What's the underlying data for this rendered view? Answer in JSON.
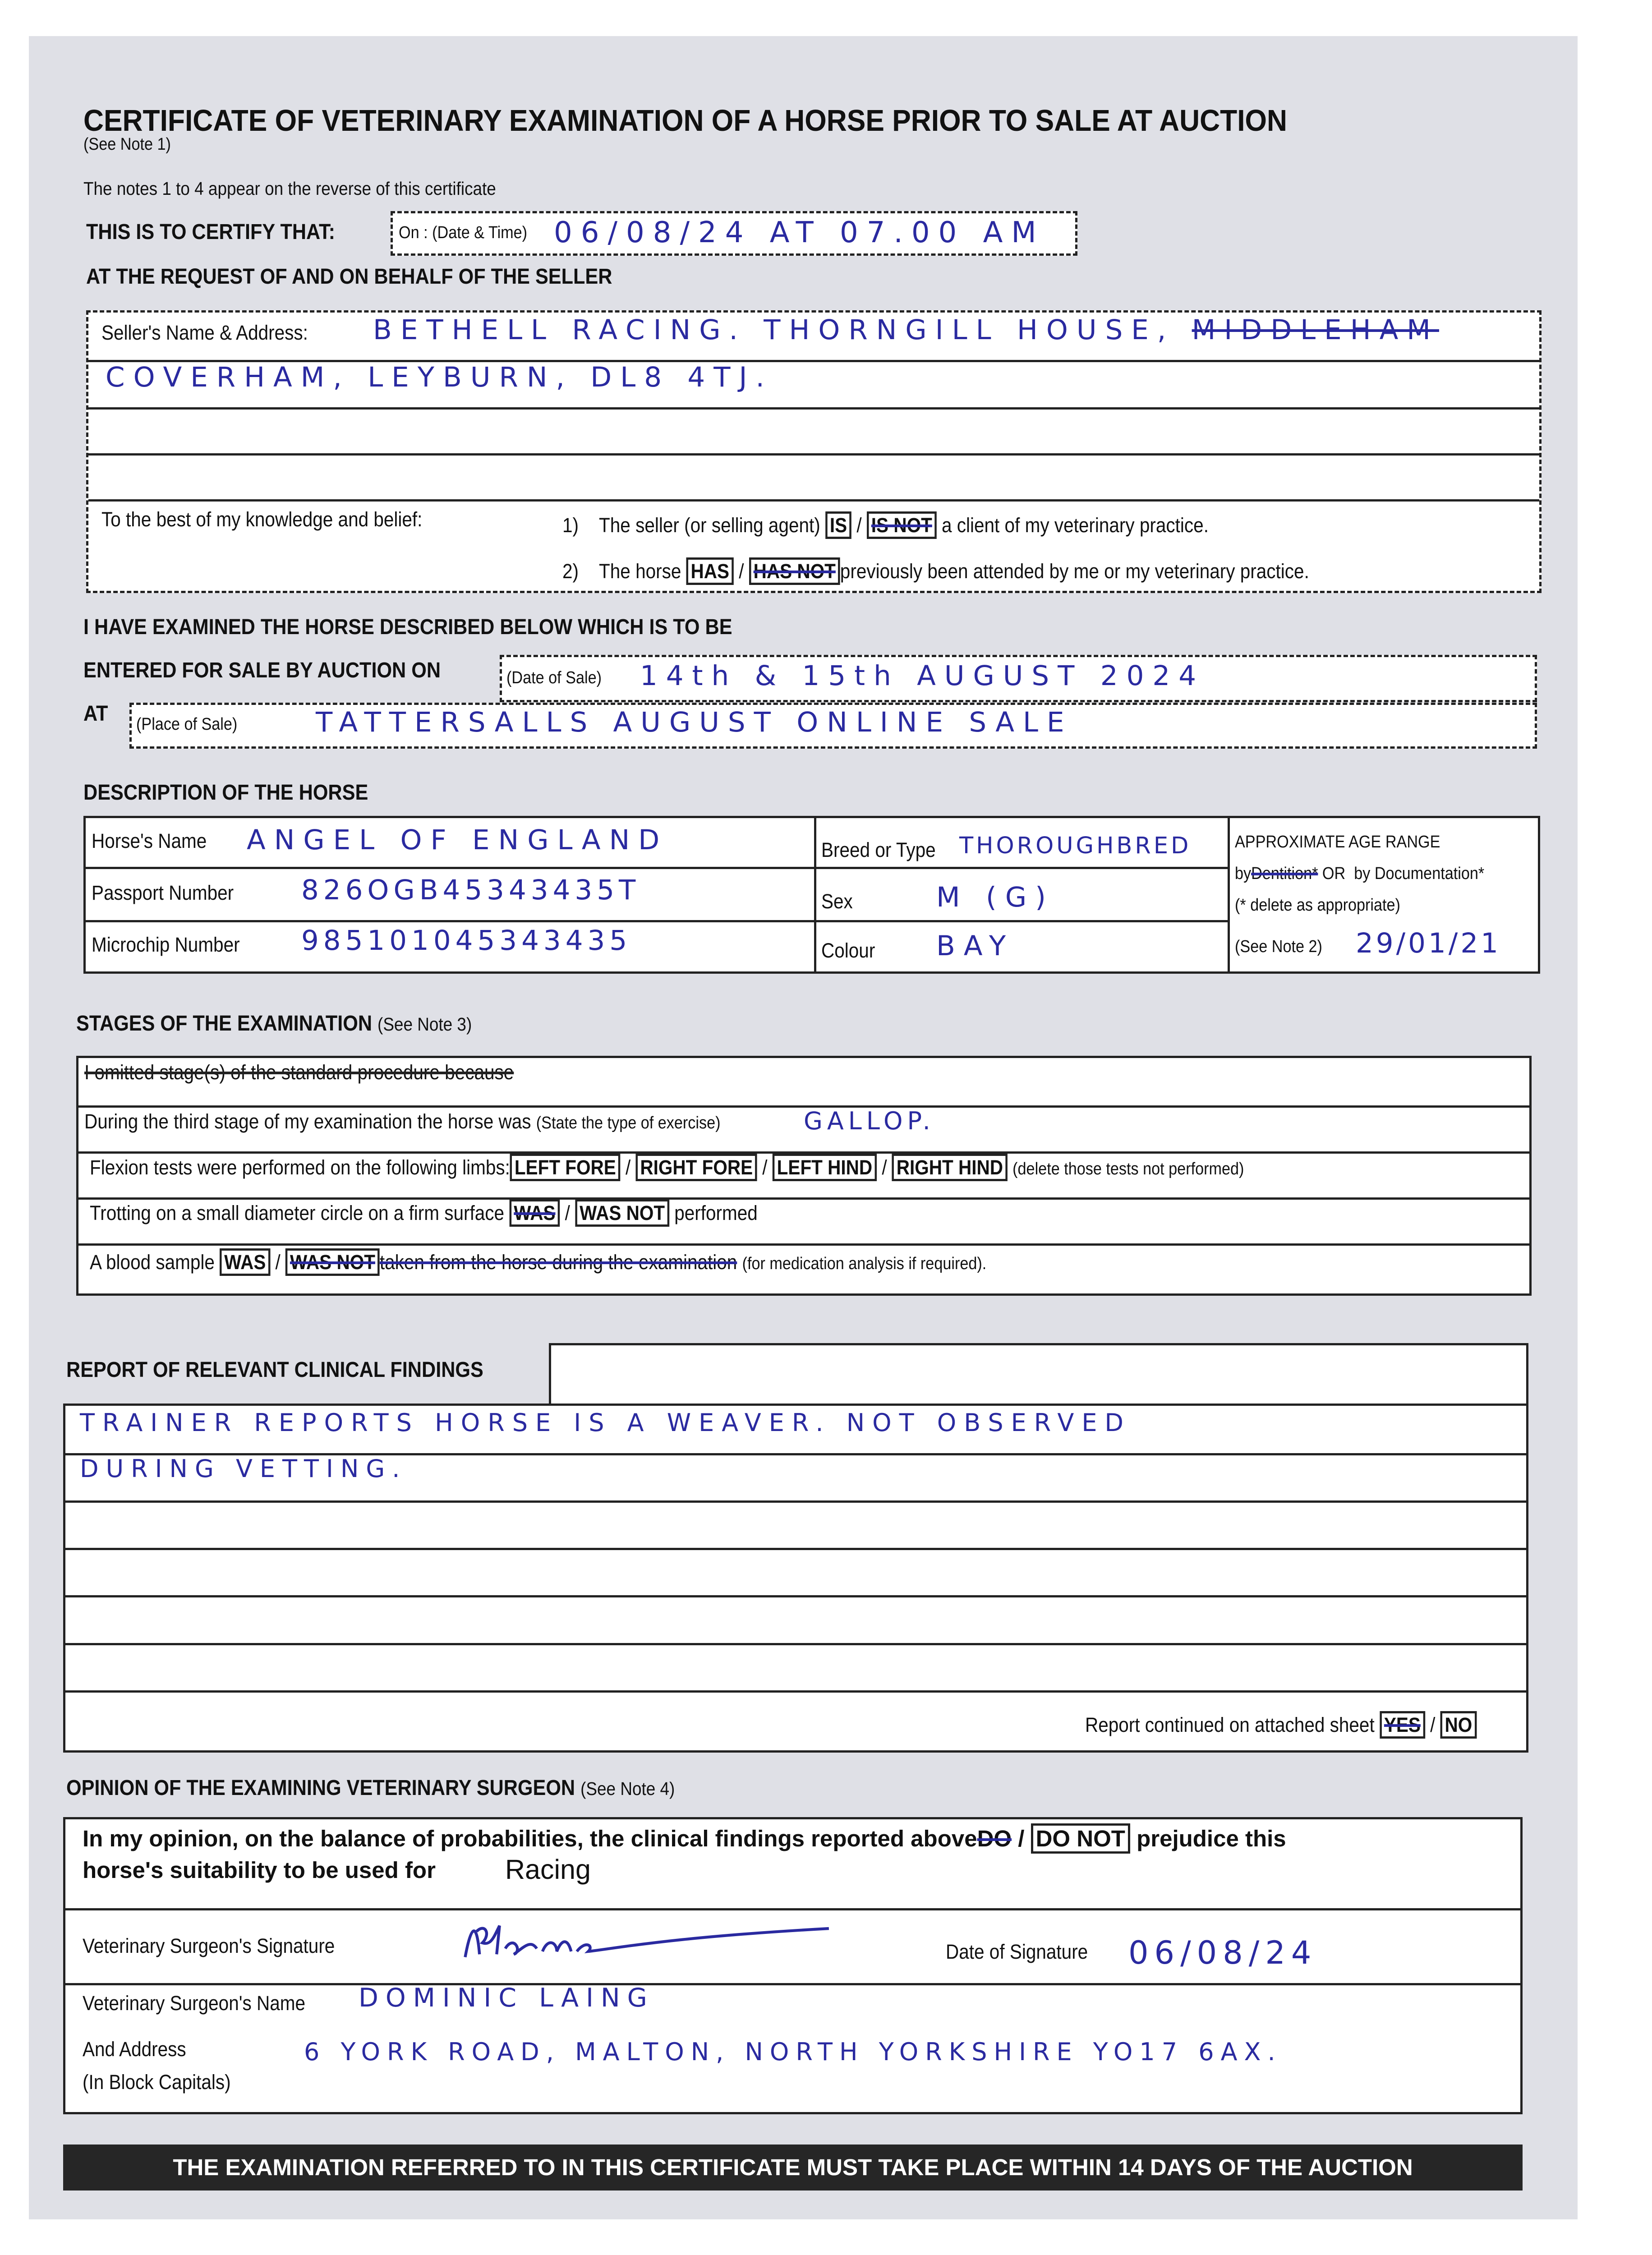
{
  "title": "CERTIFICATE OF VETERINARY EXAMINATION OF A HORSE PRIOR TO SALE AT AUCTION",
  "see_note1": "(See Note 1)",
  "notes_line": "The notes 1 to 4 appear on the reverse of this certificate",
  "certify": {
    "label": "THIS IS TO CERTIFY THAT:",
    "field_label": "On : (Date & Time)",
    "value": "06/08/24 AT 07.00 AM"
  },
  "request": "AT THE REQUEST OF AND ON BEHALF OF THE SELLER",
  "seller": {
    "label": "Seller's Name & Address:",
    "line1": "BETHELL RACING. THORNGILL HOUSE,",
    "line1_struck": "MIDDLEHAM",
    "line2": "COVERHAM, LEYBURN, DL8 4TJ."
  },
  "belief": {
    "label": "To the best of my knowledge and belief:",
    "s1_num": "1)",
    "s1_pre": "The seller (or selling agent)",
    "s1_opt1": "IS",
    "s1_opt2": "IS NOT",
    "s1_post": "a client of my veterinary practice.",
    "s2_num": "2)",
    "s2_pre": "The horse",
    "s2_opt1": "HAS",
    "s2_opt2": "HAS NOT",
    "s2_post": "previously been attended by me or my veterinary practice.",
    "sep": "/"
  },
  "examined": "I HAVE EXAMINED THE HORSE DESCRIBED BELOW WHICH IS TO BE",
  "entered": {
    "label": "ENTERED FOR SALE BY AUCTION ON",
    "date_label": "(Date of Sale)",
    "date_value": "14th & 15th AUGUST 2024",
    "at": "AT",
    "place_label": "(Place of Sale)",
    "place_value": "TATTERSALLS AUGUST ONLINE SALE"
  },
  "description": {
    "heading": "DESCRIPTION OF THE HORSE",
    "name_label": "Horse's Name",
    "name": "ANGEL OF ENGLAND",
    "passport_label": "Passport Number",
    "passport": "826OGB45343435T",
    "microchip_label": "Microchip Number",
    "microchip": "985101045343435",
    "breed_label": "Breed or Type",
    "breed": "THOROUGHBRED",
    "sex_label": "Sex",
    "sex": "M (G)",
    "colour_label": "Colour",
    "colour": "BAY",
    "age_heading": "APPROXIMATE AGE RANGE",
    "age_by": "by",
    "age_dentition": "Dentition*",
    "age_or": "OR",
    "age_doc": "by Documentation*",
    "age_delete": "(* delete as appropriate)",
    "age_note": "(See Note 2)",
    "age_value": "29/01/21"
  },
  "stages": {
    "heading": "STAGES OF THE EXAMINATION",
    "note": "(See Note 3)",
    "omitted": "I omitted stage(s)           of the standard procedure because",
    "third_label": "During the third stage of my examination the horse was",
    "third_hint": "(State the type of exercise)",
    "third_value": "GALLOP.",
    "flexion_label": "Flexion tests were performed on the following limbs:",
    "limbs": [
      "LEFT FORE",
      "RIGHT FORE",
      "LEFT HIND",
      "RIGHT HIND"
    ],
    "flexion_hint": "(delete those tests not performed)",
    "trot_label": "Trotting on a small diameter circle on a firm surface",
    "trot_opt1": "WAS",
    "trot_opt2": "WAS NOT",
    "trot_post": "performed",
    "blood_label": "A blood sample",
    "blood_opt1": "WAS",
    "blood_opt2": "WAS NOT",
    "blood_post": "taken from the horse during the examination",
    "blood_hint": "(for medication analysis if required)."
  },
  "report": {
    "heading": "REPORT OF RELEVANT CLINICAL FINDINGS",
    "line1": "TRAINER REPORTS HORSE IS A WEAVER. NOT OBSERVED",
    "line2": "DURING VETTING.",
    "continued": "Report continued on attached sheet",
    "yes": "YES",
    "no": "NO"
  },
  "opinion": {
    "heading": "OPINION OF THE EXAMINING VETERINARY SURGEON",
    "note": "(See Note 4)",
    "text1": "In my opinion, on the balance of probabilities, the clinical findings reported above",
    "do": "DO",
    "do_not": "DO NOT",
    "text2": "prejudice this",
    "text3": "horse's suitability to be used for",
    "use": "Racing",
    "sig_label": "Veterinary Surgeon's Signature",
    "date_label": "Date of Signature",
    "date_value": "06/08/24",
    "name_label": "Veterinary Surgeon's Name",
    "name_value": "DOMINIC LAING",
    "addr_label1": "And Address",
    "addr_label2": "(In Block Capitals)",
    "addr_value": "6 YORK ROAD, MALTON, NORTH YORKSHIRE YO17 6AX."
  },
  "footer": "THE EXAMINATION REFERRED TO IN THIS CERTIFICATE MUST TAKE PLACE WITHIN 14 DAYS OF THE AUCTION",
  "colors": {
    "ink": "#2a2aa0",
    "scan": "#dfe0e6",
    "footer": "#262626"
  }
}
